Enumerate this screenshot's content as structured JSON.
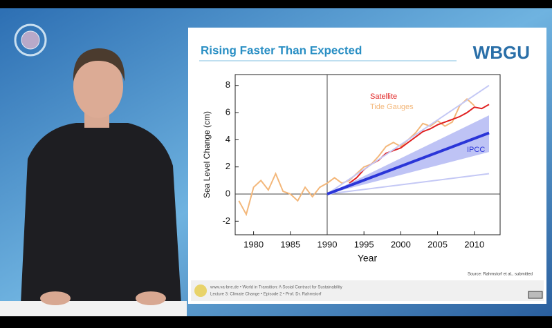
{
  "slide": {
    "title": "Rising Faster Than Expected",
    "logo": "WBGU",
    "source": "Source: Rahmstorf et al., submitted",
    "footer": [
      "www.va-bne.de • World in Transition: A Social Contract for Sustainability",
      "Lecture 3: Climate Change • Episode 2 • Prof. Dr. Rahmstorf"
    ]
  },
  "chart_data": {
    "type": "line",
    "x_label": "Year",
    "y_label": "Sea Level Change (cm)",
    "xlim": [
      1977.5,
      2013.5
    ],
    "ylim": [
      -3,
      8.8
    ],
    "xticks": [
      1980,
      1985,
      1990,
      1995,
      2000,
      2005,
      2010
    ],
    "yticks": [
      -2,
      0,
      2,
      4,
      6,
      8
    ],
    "reference_lines": {
      "x": 1990,
      "y": 0
    },
    "series": [
      {
        "name": "Tide Gauges",
        "color": "#f3b77a",
        "x": [
          1978,
          1979,
          1980,
          1981,
          1982,
          1983,
          1984,
          1985,
          1986,
          1987,
          1988,
          1989,
          1990,
          1991,
          1992,
          1993,
          1994,
          1995,
          1996,
          1997,
          1998,
          1999,
          2000,
          2001,
          2002,
          2003,
          2004,
          2005,
          2006,
          2007,
          2008,
          2009,
          2010
        ],
        "values": [
          -0.5,
          -1.5,
          0.5,
          1,
          0.3,
          1.5,
          0.2,
          0,
          -0.5,
          0.5,
          -0.2,
          0.5,
          0.8,
          1.2,
          0.8,
          1,
          1.5,
          2,
          2.2,
          2.8,
          3.5,
          3.8,
          3.5,
          4,
          4.5,
          5.2,
          5,
          5.4,
          5,
          5.3,
          6.5,
          7,
          6.5
        ]
      },
      {
        "name": "Satellite",
        "color": "#e02020",
        "x": [
          1993,
          1994,
          1995,
          1996,
          1997,
          1998,
          1999,
          2000,
          2001,
          2002,
          2003,
          2004,
          2005,
          2006,
          2007,
          2008,
          2009,
          2010,
          2011,
          2012
        ],
        "values": [
          0.8,
          1.2,
          1.8,
          2.2,
          2.5,
          3,
          3.2,
          3.4,
          3.8,
          4.2,
          4.6,
          4.8,
          5.1,
          5.3,
          5.5,
          5.7,
          6,
          6.4,
          6.3,
          6.6
        ]
      },
      {
        "name": "IPCC",
        "color": "#2a35d8",
        "band_color": "#aeb4f2",
        "outer_color": "#c4c8f5",
        "x": [
          1990,
          2012
        ],
        "values": [
          0,
          4.5
        ],
        "upper": [
          0,
          5.8
        ],
        "lower": [
          0,
          3.1
        ],
        "outer_upper": [
          0,
          8
        ],
        "outer_lower": [
          0,
          1.5
        ]
      }
    ]
  }
}
